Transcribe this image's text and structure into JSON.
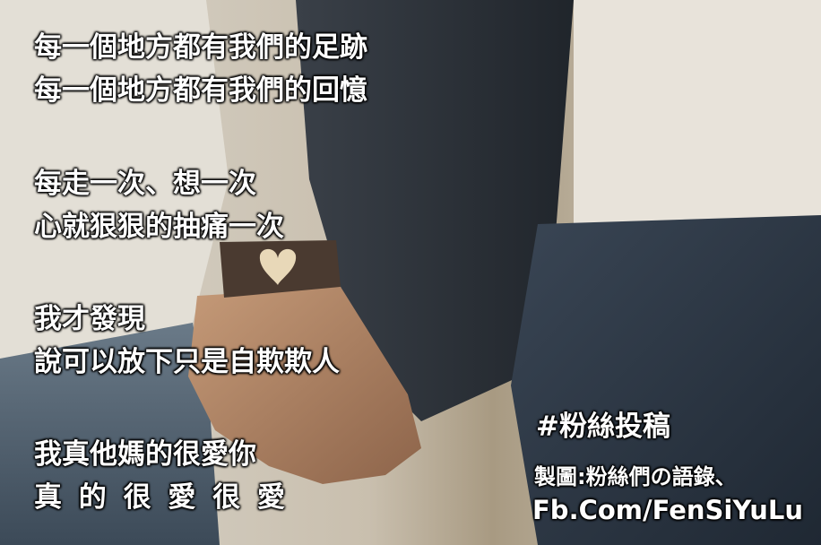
{
  "poem": {
    "lines": [
      "每一個地方都有我們的足跡",
      "每一個地方都有我們的回憶",
      "每走一次、想一次",
      "心就狠狠的抽痛一次",
      "我才發現",
      "說可以放下只是自欺欺人",
      "我真他媽的很愛你",
      "真 的 很 愛 很 愛"
    ]
  },
  "footer": {
    "hashtag": "#粉絲投稿",
    "credit": "製圖:粉絲們の語錄、",
    "url": "Fb.Com/FenSiYuLu"
  }
}
